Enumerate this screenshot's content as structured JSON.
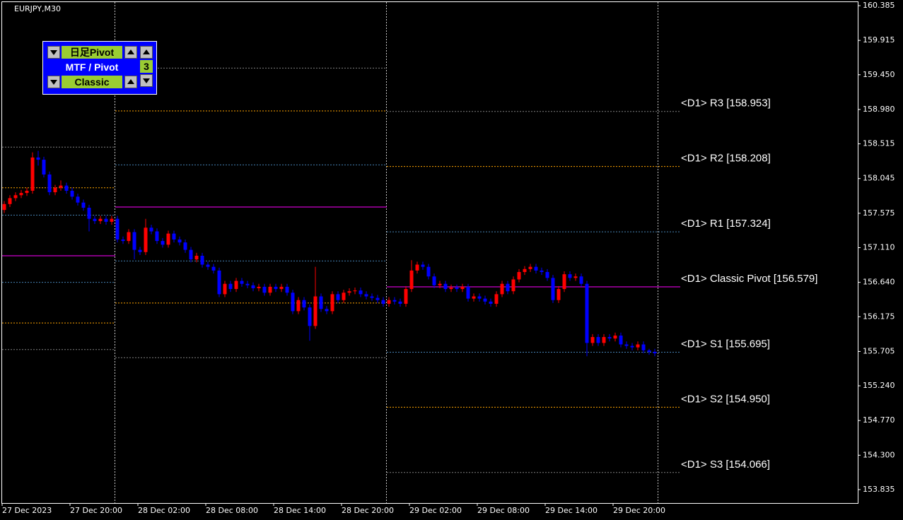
{
  "chart_data": {
    "type": "candlestick",
    "title": "EURJPY,M30",
    "open": [
      157.62,
      157.7,
      157.78,
      157.82,
      157.85,
      157.88,
      158.33,
      158.3,
      158.1,
      157.86,
      157.92,
      157.95,
      157.88,
      157.8,
      157.72,
      157.65,
      157.5,
      157.47,
      157.5,
      157.46,
      157.5,
      157.22,
      157.2,
      157.32,
      157.08,
      157.05,
      157.38,
      157.33,
      157.2,
      157.15,
      157.3,
      157.22,
      157.18,
      157.08,
      156.95,
      157.0,
      156.88,
      156.85,
      156.8,
      156.48,
      156.62,
      156.55,
      156.66,
      156.62,
      156.6,
      156.56,
      156.58,
      156.5,
      156.58,
      156.55,
      156.58,
      156.5,
      156.25,
      156.4,
      156.3,
      156.05,
      156.45,
      156.28,
      156.25,
      156.48,
      156.4,
      156.5,
      156.52,
      156.53,
      156.48,
      156.45,
      156.43,
      156.4,
      156.35,
      156.4,
      156.38,
      156.35,
      156.55,
      156.8,
      156.88,
      156.85,
      156.72,
      156.6,
      156.62,
      156.55,
      156.57,
      156.55,
      156.58,
      156.42,
      156.45,
      156.42,
      156.38,
      156.35,
      156.48,
      156.62,
      156.52,
      156.68,
      156.78,
      156.82,
      156.85,
      156.8,
      156.78,
      156.7,
      156.4,
      156.55,
      156.75,
      156.7,
      156.72,
      156.62,
      155.82,
      155.9,
      155.82,
      155.9,
      155.88,
      155.92,
      155.8,
      155.78,
      155.76,
      155.8,
      155.72,
      155.7
    ],
    "high": [
      157.74,
      157.82,
      157.86,
      157.89,
      157.92,
      158.4,
      158.42,
      158.34,
      158.14,
      157.96,
      158.02,
      157.99,
      157.92,
      157.84,
      157.76,
      157.69,
      157.54,
      157.54,
      157.54,
      157.54,
      157.54,
      157.26,
      157.36,
      157.36,
      157.12,
      157.5,
      157.42,
      157.37,
      157.24,
      157.34,
      157.34,
      157.26,
      157.22,
      157.12,
      157.04,
      157.04,
      156.92,
      156.89,
      156.84,
      156.66,
      156.66,
      156.7,
      156.7,
      156.66,
      156.64,
      156.62,
      156.62,
      156.62,
      156.62,
      156.62,
      156.62,
      156.54,
      156.44,
      156.44,
      156.34,
      156.85,
      156.49,
      156.32,
      156.52,
      156.52,
      156.54,
      156.56,
      156.57,
      156.57,
      156.52,
      156.49,
      156.47,
      156.44,
      156.44,
      156.44,
      156.42,
      156.59,
      156.94,
      156.92,
      156.92,
      156.89,
      156.76,
      156.66,
      156.66,
      156.61,
      156.61,
      156.62,
      156.62,
      156.49,
      156.49,
      156.46,
      156.42,
      156.52,
      156.66,
      156.66,
      156.72,
      156.82,
      156.86,
      156.89,
      156.89,
      156.84,
      156.82,
      156.74,
      156.59,
      156.79,
      156.79,
      156.76,
      156.76,
      156.66,
      155.94,
      155.94,
      155.94,
      155.94,
      155.96,
      155.96,
      155.84,
      155.82,
      155.84,
      155.84,
      155.74,
      155.74
    ],
    "low": [
      157.58,
      157.66,
      157.74,
      157.78,
      157.81,
      157.84,
      158.22,
      158.06,
      157.82,
      157.82,
      157.88,
      157.84,
      157.76,
      157.68,
      157.61,
      157.33,
      157.43,
      157.43,
      157.42,
      157.42,
      157.18,
      157.16,
      157.16,
      156.95,
      157.01,
      157.01,
      157.29,
      157.16,
      157.11,
      157.11,
      157.18,
      157.14,
      157.04,
      156.91,
      156.91,
      156.84,
      156.81,
      156.76,
      156.44,
      156.44,
      156.51,
      156.51,
      156.58,
      156.56,
      156.52,
      156.52,
      156.46,
      156.46,
      156.51,
      156.51,
      156.46,
      156.21,
      156.21,
      156.26,
      155.85,
      156.01,
      156.24,
      156.21,
      156.21,
      156.36,
      156.36,
      156.46,
      156.48,
      156.44,
      156.41,
      156.39,
      156.36,
      156.31,
      156.31,
      156.34,
      156.31,
      156.31,
      156.51,
      156.76,
      156.81,
      156.68,
      156.56,
      156.56,
      156.51,
      156.51,
      156.51,
      156.51,
      156.38,
      156.38,
      156.38,
      156.34,
      156.31,
      156.31,
      156.44,
      156.48,
      156.48,
      156.64,
      156.74,
      156.78,
      156.76,
      156.74,
      156.66,
      156.36,
      156.36,
      156.51,
      156.66,
      156.66,
      156.58,
      155.64,
      155.78,
      155.78,
      155.78,
      155.84,
      155.84,
      155.76,
      155.74,
      155.72,
      155.72,
      155.68,
      155.66,
      155.64
    ],
    "close": [
      157.7,
      157.78,
      157.82,
      157.85,
      157.88,
      158.33,
      158.3,
      158.1,
      157.86,
      157.92,
      157.95,
      157.88,
      157.8,
      157.72,
      157.65,
      157.5,
      157.47,
      157.5,
      157.46,
      157.5,
      157.22,
      157.2,
      157.32,
      157.08,
      157.05,
      157.38,
      157.33,
      157.2,
      157.15,
      157.3,
      157.22,
      157.18,
      157.08,
      156.95,
      157.0,
      156.88,
      156.85,
      156.8,
      156.48,
      156.62,
      156.55,
      156.66,
      156.62,
      156.6,
      156.56,
      156.58,
      156.5,
      156.58,
      156.55,
      156.58,
      156.5,
      156.25,
      156.4,
      156.3,
      156.05,
      156.45,
      156.28,
      156.25,
      156.48,
      156.4,
      156.5,
      156.52,
      156.53,
      156.48,
      156.45,
      156.43,
      156.4,
      156.35,
      156.4,
      156.38,
      156.35,
      156.55,
      156.8,
      156.88,
      156.85,
      156.72,
      156.6,
      156.62,
      156.55,
      156.57,
      156.55,
      156.58,
      156.42,
      156.45,
      156.42,
      156.38,
      156.35,
      156.48,
      156.62,
      156.52,
      156.68,
      156.78,
      156.82,
      156.85,
      156.8,
      156.78,
      156.7,
      156.4,
      156.55,
      156.75,
      156.7,
      156.72,
      156.62,
      155.82,
      155.9,
      155.82,
      155.9,
      155.88,
      155.92,
      155.8,
      155.78,
      155.76,
      155.8,
      155.72,
      155.7,
      155.68
    ],
    "up_color": "#ff0000",
    "down_color": "#0000ff",
    "ylim": [
      153.653,
      160.433
    ],
    "yticks": [
      160.385,
      159.915,
      {
        "value": 159.45,
        "label": "159.450"
      },
      {
        "value": 158.98,
        "label": "158.980"
      },
      158.515,
      158.045,
      157.575,
      {
        "value": 157.11,
        "label": "157.110"
      },
      {
        "value": 156.64,
        "label": "156.640"
      },
      156.175,
      155.705,
      {
        "value": 155.24,
        "label": "155.240"
      },
      {
        "value": 154.77,
        "label": "154.770"
      },
      {
        "value": 154.3,
        "label": "154.300"
      },
      153.835
    ],
    "x_labels": [
      "27 Dec 2023",
      "27 Dec 20:00",
      "28 Dec 02:00",
      "28 Dec 08:00",
      "28 Dec 14:00",
      "28 Dec 20:00",
      "29 Dec 02:00",
      "29 Dec 08:00",
      "29 Dec 14:00",
      "29 Dec 20:00"
    ],
    "pivot_colors": [
      "#808080",
      "#ffa500",
      "#4682b4",
      "#ff00ff",
      "#4682b4",
      "#ffa500",
      "#808080"
    ],
    "pivots": [
      {
        "levels": [
          158.47,
          157.92,
          157.55,
          157.0,
          156.64,
          156.09,
          155.73
        ]
      },
      {
        "levels": [
          159.54,
          158.96,
          158.23,
          157.66,
          156.93,
          156.36,
          155.62
        ]
      },
      {
        "levels": [
          {
            "value": 158.953,
            "label": "<D1> R3 [158.953]"
          },
          {
            "value": 158.208,
            "label": "<D1> R2 [158.208]"
          },
          {
            "value": 157.324,
            "label": "<D1> R1 [157.324]"
          },
          {
            "value": 156.579,
            "label": "<D1> Classic Pivot [156.579]"
          },
          {
            "value": 155.695,
            "label": "<D1> S1 [155.695]"
          },
          {
            "value": 154.95,
            "label": "<D1> S2 [154.950]"
          },
          {
            "value": 154.066,
            "label": "<D1> S3 [154.066]"
          }
        ]
      }
    ]
  },
  "panel": {
    "timeframe": "日足Pivot",
    "heading": "MTF / Pivot",
    "count": "3",
    "method": "Classic"
  }
}
